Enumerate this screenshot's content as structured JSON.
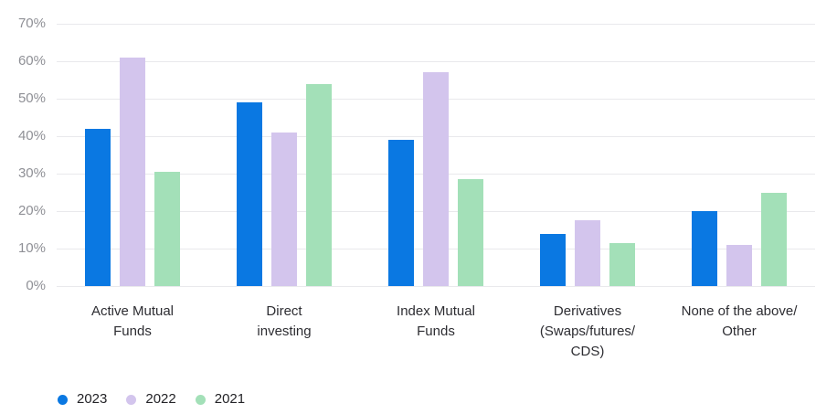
{
  "chart_data": {
    "type": "bar",
    "title": "",
    "categories": [
      "Active Mutual Funds",
      "Direct investing",
      "Index Mutual Funds",
      "Derivatives (Swaps/futures/CDS)",
      "None of the above/Other"
    ],
    "category_lines": [
      [
        "Active Mutual",
        "Funds"
      ],
      [
        "Direct",
        "investing"
      ],
      [
        "Index Mutual",
        "Funds"
      ],
      [
        "Derivatives",
        "(Swaps/futures/",
        "CDS)"
      ],
      [
        "None of the above/",
        "Other"
      ]
    ],
    "series": [
      {
        "name": "2023",
        "color": "#0a78e2",
        "values": [
          42,
          49,
          39,
          14,
          20
        ]
      },
      {
        "name": "2022",
        "color": "#d3c5ed",
        "values": [
          61,
          41,
          57,
          17.5,
          11
        ]
      },
      {
        "name": "2021",
        "color": "#a3e0b8",
        "values": [
          30.5,
          54,
          28.5,
          11.5,
          25
        ]
      }
    ],
    "ylim": [
      0,
      70
    ],
    "yticks": [
      "0%",
      "10%",
      "20%",
      "30%",
      "40%",
      "50%",
      "60%",
      "70%"
    ],
    "ytick_values": [
      0,
      10,
      20,
      30,
      40,
      50,
      60,
      70
    ],
    "grid": true,
    "legend_position": "bottom-left"
  },
  "colors": {
    "background": "#ffffff",
    "gridline": "#e9e9ec",
    "ytick_text": "#8f9096",
    "xlabel_text": "#2d2d32",
    "legend_text": "#232327",
    "series_2023": "#0a78e2",
    "series_2022": "#d3c5ed",
    "series_2021": "#a3e0b8"
  }
}
